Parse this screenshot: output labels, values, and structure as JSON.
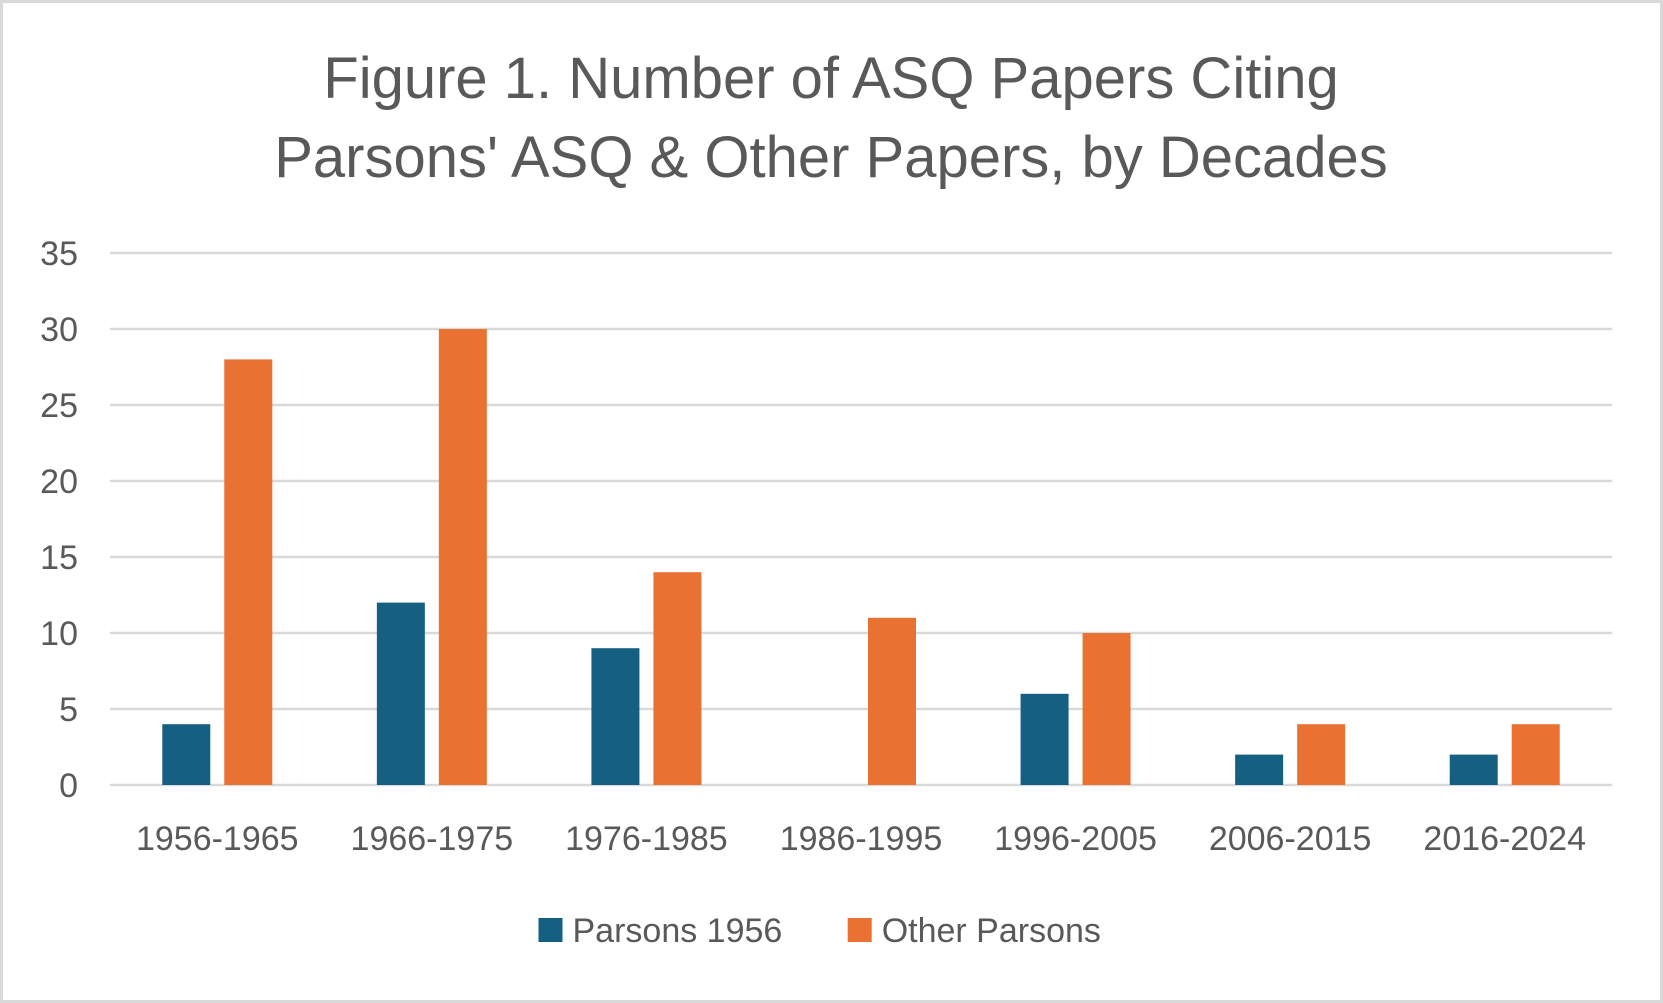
{
  "chart_data": {
    "type": "bar",
    "title": "Figure 1. Number of ASQ Papers Citing Parsons' ASQ & Other Papers, by Decades",
    "title_lines": [
      "Figure 1. Number of ASQ Papers Citing",
      "Parsons' ASQ & Other Papers, by Decades"
    ],
    "xlabel": "",
    "ylabel": "",
    "categories": [
      "1956-1965",
      "1966-1975",
      "1976-1985",
      "1986-1995",
      "1996-2005",
      "2006-2015",
      "2016-2024"
    ],
    "series": [
      {
        "name": "Parsons 1956",
        "color": "#156082",
        "values": [
          4,
          12,
          9,
          0,
          6,
          2,
          2
        ]
      },
      {
        "name": "Other Parsons",
        "color": "#E97132",
        "values": [
          28,
          30,
          14,
          11,
          10,
          4,
          4
        ]
      }
    ],
    "ylim": [
      0,
      35
    ],
    "yticks": [
      0,
      5,
      10,
      15,
      20,
      25,
      30,
      35
    ],
    "grid": true,
    "legend_position": "bottom",
    "colors": {
      "gridline": "#D9D9D9",
      "text": "#595959",
      "frame": "#D9D9D9",
      "background": "#FFFFFF"
    }
  }
}
